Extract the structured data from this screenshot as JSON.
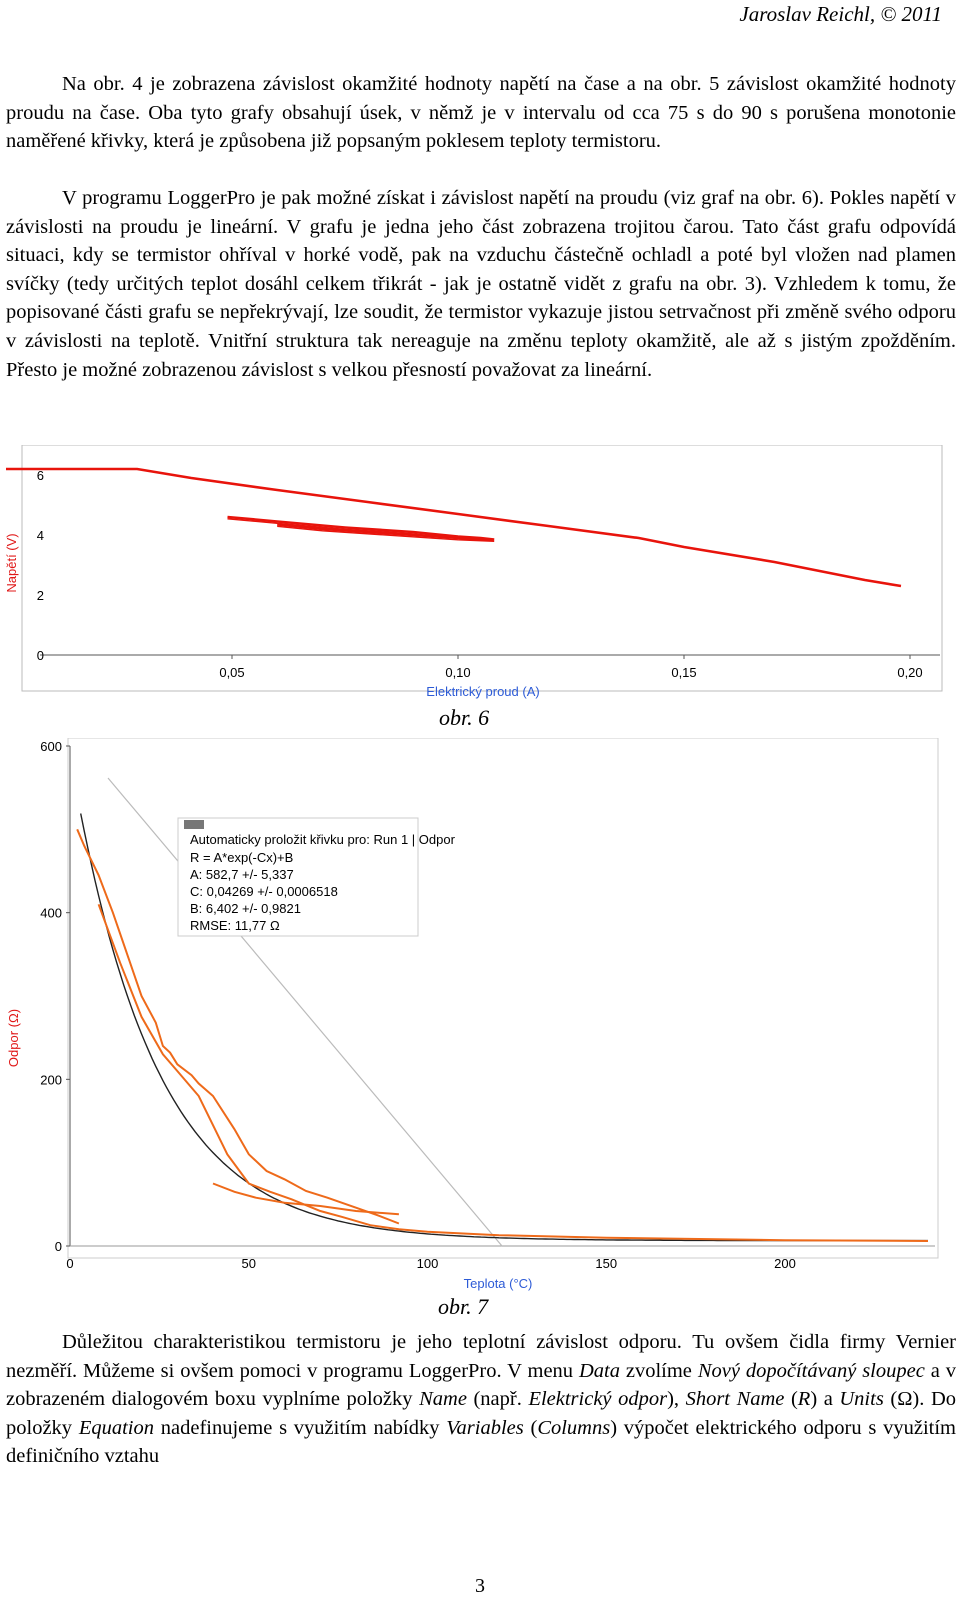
{
  "header": "Jaroslav Reichl, © 2011",
  "p1": "Na obr. 4 je zobrazena závislost okamžité hodnoty napětí na čase a na obr. 5 závislost okamžité hodnoty proudu na čase. Oba tyto grafy obsahují úsek, v němž je v intervalu od cca 75 s do 90 s porušena monotonie naměřené křivky, která je způsobena již popsaným poklesem teploty termistoru.",
  "p2": "V programu LoggerPro je pak možné získat i závislost napětí na proudu (viz graf na obr. 6). Pokles napětí v závislosti na proudu je lineární. V grafu je jedna jeho část zobrazena trojitou čarou. Tato část grafu odpovídá situaci, kdy se termistor ohříval v horké vodě, pak na vzduchu částečně ochladl a poté byl vložen nad plamen svíčky (tedy určitých teplot dosáhl celkem třikrát - jak je ostatně vidět z grafu na obr. 3). Vzhledem k tomu, že popisované části grafu se nepřekrývají, lze soudit, že termistor vykazuje jistou setrvačnost při změně svého odporu v závislosti na teplotě. Vnitřní struktura tak nereaguje na změnu teploty okamžitě, ale až s jistým zpožděním. Přesto je možné zobrazenou závislost s velkou přesností považovat za lineární.",
  "caption6": "obr. 6",
  "caption7": "obr. 7",
  "p3": {
    "t1": "Důležitou charakteristikou termistoru je jeho teplotní závislost odporu. Tu ovšem čidla firmy Vernier nezměří. Můžeme si ovšem pomoci v programu LoggerPro. V menu ",
    "data": "Data",
    "t2": " zvolíme ",
    "novy": "Nový dopočítávaný sloupec",
    "t3": " a v zobrazeném dialogovém boxu vyplníme položky ",
    "name": "Name",
    "t4": " (např. ",
    "odpor": "Elektrický odpor",
    "t5": "), ",
    "short": "Short Name",
    "t6": " (",
    "r": "R",
    "t7": ") a ",
    "units": "Units",
    "t8": " (Ω). Do položky ",
    "equation": "Equation",
    "t9": " nadefinujeme s využitím nabídky ",
    "variables": "Variables",
    "t10": " (",
    "columns": "Columns",
    "t11": ") výpočet elektrického odporu s využitím definičního vztahu"
  },
  "page_number": "3",
  "colors": {
    "red_line": "#e8140c",
    "orange_line": "#ee6a1a",
    "fit_line": "#222222",
    "axis_label": "#2d5bd6",
    "y_label": "#e01818"
  },
  "chart_data": [
    {
      "type": "line",
      "xlabel": "Elektrický proud (A)",
      "ylabel": "Napětí (V)",
      "xlim": [
        0.0,
        0.2
      ],
      "ylim": [
        0,
        6.2
      ],
      "x_ticks": [
        "0,05",
        "0,10",
        "0,15",
        "0,20"
      ],
      "y_ticks": [
        "0",
        "2",
        "4",
        "6"
      ],
      "series": [
        {
          "values_xy": [
            [
              0.0,
              6.2
            ],
            [
              0.029,
              6.2
            ],
            [
              0.041,
              5.9
            ],
            [
              0.06,
              5.5
            ],
            [
              0.08,
              5.1
            ],
            [
              0.1,
              4.7
            ],
            [
              0.12,
              4.3
            ],
            [
              0.14,
              3.9
            ],
            [
              0.15,
              3.6
            ],
            [
              0.17,
              3.1
            ],
            [
              0.18,
              2.8
            ],
            [
              0.19,
              2.5
            ],
            [
              0.198,
              2.3
            ]
          ]
        },
        {
          "values_xy": [
            [
              0.049,
              4.6
            ],
            [
              0.06,
              4.45
            ],
            [
              0.075,
              4.25
            ],
            [
              0.09,
              4.1
            ],
            [
              0.1,
              3.95
            ],
            [
              0.105,
              3.9
            ],
            [
              0.108,
              3.85
            ],
            [
              0.1,
              3.9
            ],
            [
              0.085,
              4.05
            ],
            [
              0.07,
              4.2
            ],
            [
              0.06,
              4.35
            ]
          ]
        }
      ]
    },
    {
      "type": "line",
      "xlabel": "Teplota (°C)",
      "ylabel": "Odpor (Ω)",
      "xlim": [
        0,
        240
      ],
      "ylim": [
        0,
        600
      ],
      "x_ticks": [
        "0",
        "50",
        "100",
        "150",
        "200"
      ],
      "y_ticks": [
        "0",
        "200",
        "400",
        "600"
      ],
      "fit_box": {
        "title": "Automaticky proložit křivku pro: Run 1 | Odpor",
        "lines": [
          "R = A*exp(-Cx)+B",
          "A: 582,7 +/- 5,337",
          "C: 0,04269 +/- 0,0006518",
          "B: 6,402 +/- 0,9821",
          "RMSE: 11,77 Ω"
        ]
      },
      "fit": {
        "A": 582.7,
        "C": 0.04269,
        "B": 6.402
      },
      "series": [
        {
          "values_xy": [
            [
              2,
              500
            ],
            [
              4,
              480
            ],
            [
              8,
              445
            ],
            [
              12,
              400
            ],
            [
              16,
              350
            ],
            [
              20,
              300
            ],
            [
              24,
              268
            ],
            [
              26,
              240
            ],
            [
              28,
              232
            ],
            [
              30,
              218
            ],
            [
              34,
              205
            ],
            [
              36,
              195
            ],
            [
              40,
              180
            ],
            [
              46,
              140
            ],
            [
              50,
              110
            ],
            [
              55,
              90
            ],
            [
              60,
              80
            ],
            [
              66,
              66
            ],
            [
              72,
              58
            ],
            [
              80,
              46
            ],
            [
              86,
              37
            ],
            [
              92,
              27
            ]
          ]
        },
        {
          "values_xy": [
            [
              8,
              410
            ],
            [
              14,
              340
            ],
            [
              20,
              275
            ],
            [
              26,
              230
            ],
            [
              30,
              210
            ],
            [
              36,
              180
            ],
            [
              44,
              110
            ],
            [
              50,
              75
            ],
            [
              56,
              65
            ],
            [
              62,
              56
            ],
            [
              70,
              42
            ],
            [
              76,
              35
            ],
            [
              84,
              25
            ],
            [
              92,
              20
            ],
            [
              100,
              17
            ],
            [
              120,
              13
            ],
            [
              150,
              10
            ],
            [
              200,
              7
            ],
            [
              240,
              6
            ]
          ]
        },
        {
          "values_xy": [
            [
              40,
              75
            ],
            [
              46,
              65
            ],
            [
              52,
              58
            ],
            [
              60,
              52
            ],
            [
              70,
              48
            ],
            [
              80,
              42
            ],
            [
              92,
              38
            ]
          ]
        }
      ]
    }
  ]
}
